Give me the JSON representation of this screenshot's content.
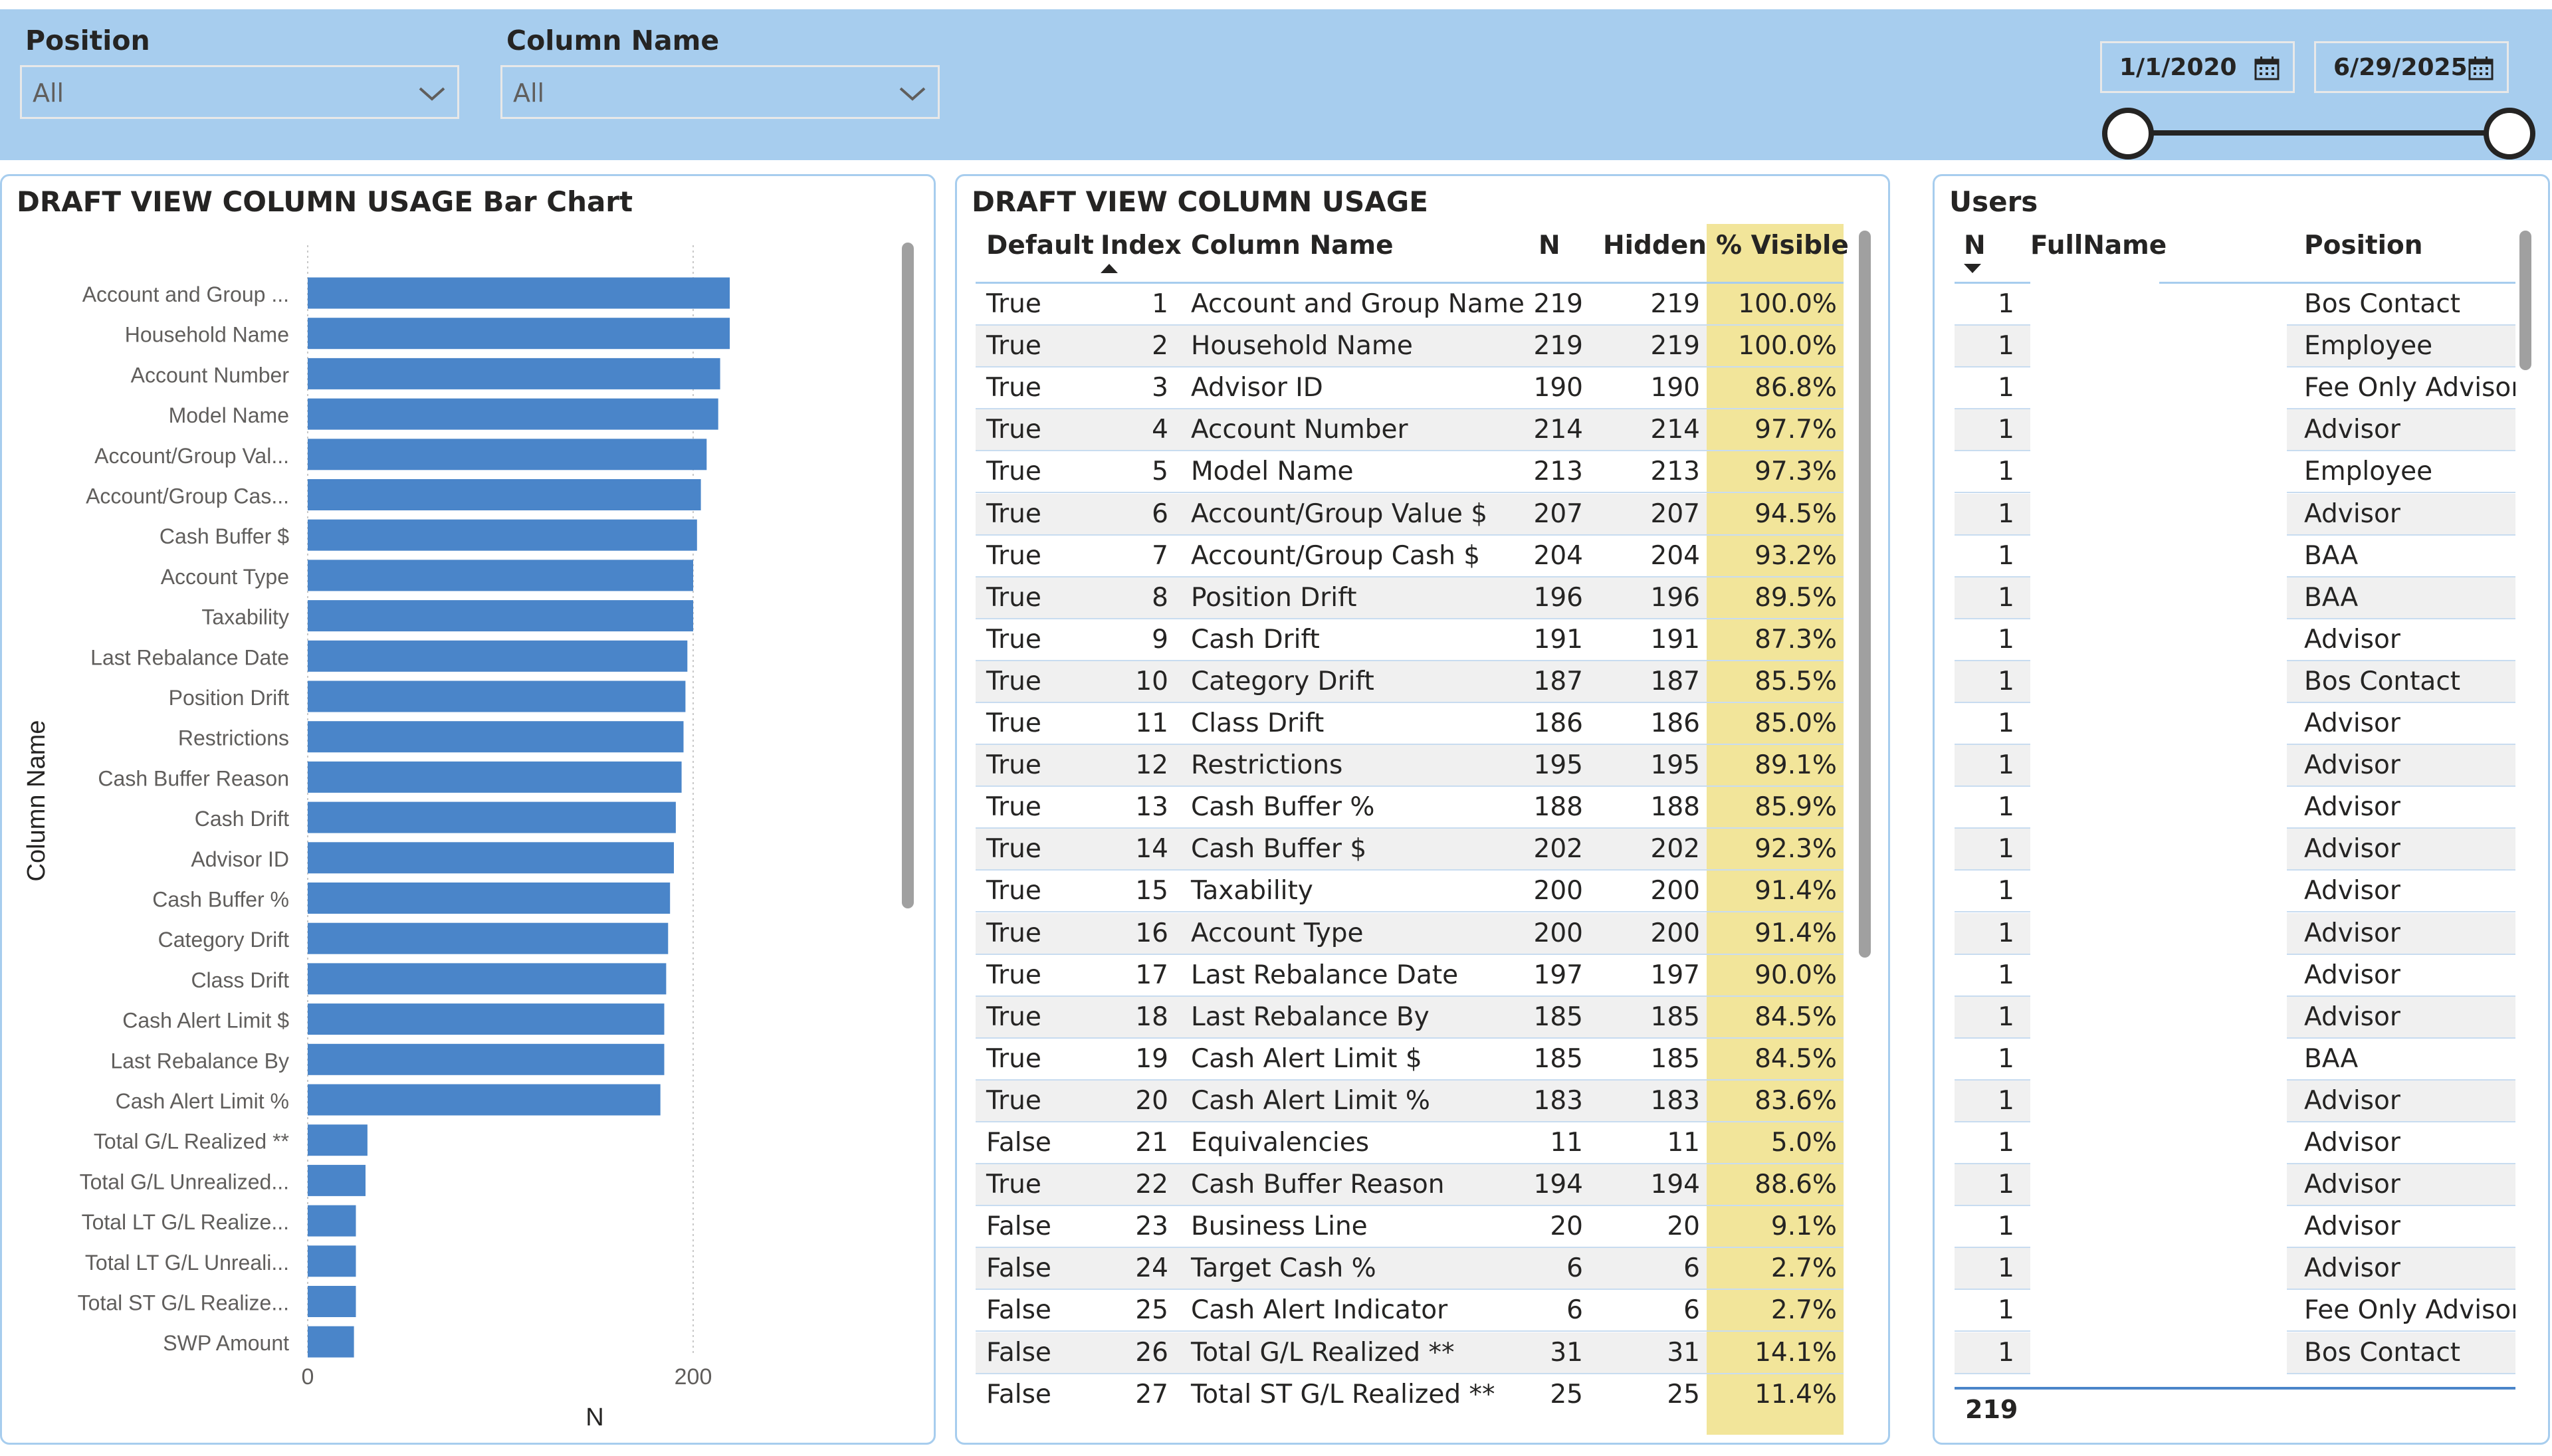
{
  "filters": {
    "position": {
      "title": "Position",
      "value": "All"
    },
    "column_name": {
      "title": "Column Name",
      "value": "All"
    },
    "date_start": "1/1/2020",
    "date_end": "6/29/2025"
  },
  "bar_chart": {
    "title": "DRAFT VIEW COLUMN USAGE Bar Chart"
  },
  "chart_data": {
    "type": "bar",
    "orientation": "horizontal",
    "title": "DRAFT VIEW COLUMN USAGE Bar Chart",
    "xlabel": "N",
    "ylabel": "Column Name",
    "xlim": [
      0,
      300
    ],
    "xticks": [
      0,
      200
    ],
    "grid": true,
    "color": "#4a85c9",
    "categories": [
      "Account and Group ...",
      "Household Name",
      "Account Number",
      "Model Name",
      "Account/Group Val...",
      "Account/Group Cas...",
      "Cash Buffer $",
      "Account Type",
      "Taxability",
      "Last Rebalance Date",
      "Position Drift",
      "Restrictions",
      "Cash Buffer Reason",
      "Cash Drift",
      "Advisor ID",
      "Cash Buffer %",
      "Category Drift",
      "Class Drift",
      "Cash Alert Limit $",
      "Last Rebalance By",
      "Cash Alert Limit %",
      "Total G/L Realized **",
      "Total G/L Unrealized...",
      "Total LT G/L Realize...",
      "Total LT G/L Unreali...",
      "Total ST G/L Realize...",
      "SWP Amount"
    ],
    "values": [
      219,
      219,
      214,
      213,
      207,
      204,
      202,
      200,
      200,
      197,
      196,
      195,
      194,
      191,
      190,
      188,
      187,
      186,
      185,
      185,
      183,
      31,
      30,
      25,
      25,
      25,
      24
    ]
  },
  "usage_table": {
    "title": "DRAFT VIEW COLUMN USAGE",
    "headers": {
      "default": "Default",
      "index": "Index",
      "column_name": "Column Name",
      "n": "N",
      "hidden": "Hidden",
      "visible": "% Visible"
    },
    "highlight_color": "#f2e59a",
    "rows": [
      [
        "True",
        "1",
        "Account and Group Name",
        "219",
        "219",
        "100.0%"
      ],
      [
        "True",
        "2",
        "Household Name",
        "219",
        "219",
        "100.0%"
      ],
      [
        "True",
        "3",
        "Advisor ID",
        "190",
        "190",
        "86.8%"
      ],
      [
        "True",
        "4",
        "Account Number",
        "214",
        "214",
        "97.7%"
      ],
      [
        "True",
        "5",
        "Model Name",
        "213",
        "213",
        "97.3%"
      ],
      [
        "True",
        "6",
        "Account/Group Value $",
        "207",
        "207",
        "94.5%"
      ],
      [
        "True",
        "7",
        "Account/Group Cash $",
        "204",
        "204",
        "93.2%"
      ],
      [
        "True",
        "8",
        "Position Drift",
        "196",
        "196",
        "89.5%"
      ],
      [
        "True",
        "9",
        "Cash Drift",
        "191",
        "191",
        "87.3%"
      ],
      [
        "True",
        "10",
        "Category Drift",
        "187",
        "187",
        "85.5%"
      ],
      [
        "True",
        "11",
        "Class Drift",
        "186",
        "186",
        "85.0%"
      ],
      [
        "True",
        "12",
        "Restrictions",
        "195",
        "195",
        "89.1%"
      ],
      [
        "True",
        "13",
        "Cash Buffer %",
        "188",
        "188",
        "85.9%"
      ],
      [
        "True",
        "14",
        "Cash Buffer $",
        "202",
        "202",
        "92.3%"
      ],
      [
        "True",
        "15",
        "Taxability",
        "200",
        "200",
        "91.4%"
      ],
      [
        "True",
        "16",
        "Account Type",
        "200",
        "200",
        "91.4%"
      ],
      [
        "True",
        "17",
        "Last Rebalance Date",
        "197",
        "197",
        "90.0%"
      ],
      [
        "True",
        "18",
        "Last Rebalance By",
        "185",
        "185",
        "84.5%"
      ],
      [
        "True",
        "19",
        "Cash Alert Limit $",
        "185",
        "185",
        "84.5%"
      ],
      [
        "True",
        "20",
        "Cash Alert Limit %",
        "183",
        "183",
        "83.6%"
      ],
      [
        "False",
        "21",
        "Equivalencies",
        "11",
        "11",
        "5.0%"
      ],
      [
        "True",
        "22",
        "Cash Buffer Reason",
        "194",
        "194",
        "88.6%"
      ],
      [
        "False",
        "23",
        "Business Line",
        "20",
        "20",
        "9.1%"
      ],
      [
        "False",
        "24",
        "Target Cash %",
        "6",
        "6",
        "2.7%"
      ],
      [
        "False",
        "25",
        "Cash Alert Indicator",
        "6",
        "6",
        "2.7%"
      ],
      [
        "False",
        "26",
        "Total G/L Realized **",
        "31",
        "31",
        "14.1%"
      ],
      [
        "False",
        "27",
        "Total ST G/L Realized **",
        "25",
        "25",
        "11.4%"
      ]
    ]
  },
  "users_table": {
    "title": "Users",
    "headers": {
      "n": "N",
      "fullname": "FullName",
      "position": "Position"
    },
    "total": "219",
    "rows": [
      [
        "1",
        "Bos Contact"
      ],
      [
        "1",
        "Employee"
      ],
      [
        "1",
        "Fee Only Advisor"
      ],
      [
        "1",
        "Advisor"
      ],
      [
        "1",
        "Employee"
      ],
      [
        "1",
        "Advisor"
      ],
      [
        "1",
        "BAA"
      ],
      [
        "1",
        "BAA"
      ],
      [
        "1",
        "Advisor"
      ],
      [
        "1",
        "Bos Contact"
      ],
      [
        "1",
        "Advisor"
      ],
      [
        "1",
        "Advisor"
      ],
      [
        "1",
        "Advisor"
      ],
      [
        "1",
        "Advisor"
      ],
      [
        "1",
        "Advisor"
      ],
      [
        "1",
        "Advisor"
      ],
      [
        "1",
        "Advisor"
      ],
      [
        "1",
        "Advisor"
      ],
      [
        "1",
        "BAA"
      ],
      [
        "1",
        "Advisor"
      ],
      [
        "1",
        "Advisor"
      ],
      [
        "1",
        "Advisor"
      ],
      [
        "1",
        "Advisor"
      ],
      [
        "1",
        "Advisor"
      ],
      [
        "1",
        "Fee Only Advisor"
      ],
      [
        "1",
        "Bos Contact"
      ]
    ]
  }
}
